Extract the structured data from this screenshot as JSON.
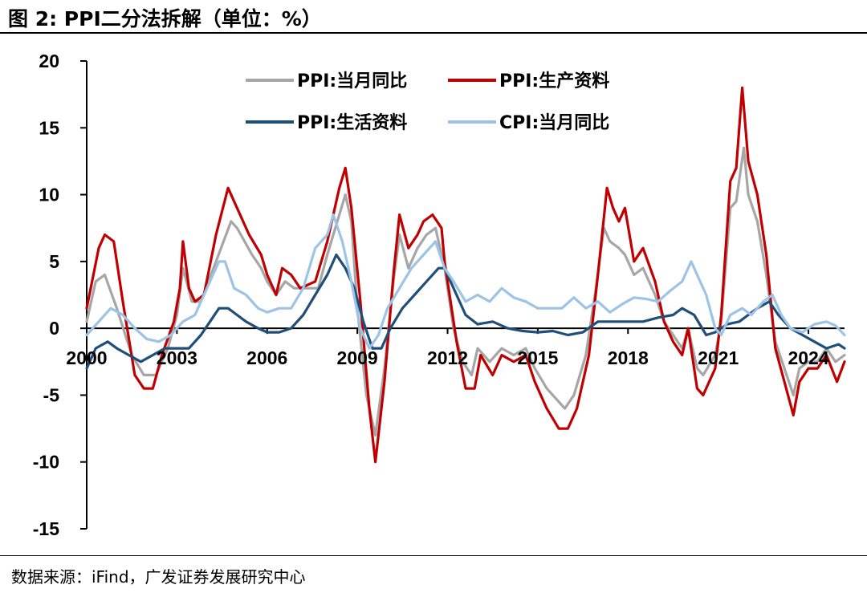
{
  "header": {
    "title": "图 2: PPI二分法拆解（单位：%）"
  },
  "footer": {
    "source": "数据来源：iFind，广发证券发展研究中心"
  },
  "chart_data": {
    "type": "line",
    "title": "PPI二分法拆解（单位：%）",
    "xlabel": "",
    "ylabel": "",
    "ylim": [
      -15,
      20
    ],
    "xlim": [
      2000.0,
      2025.2
    ],
    "yticks": [
      20,
      15,
      10,
      5,
      0,
      -5,
      -10,
      -15
    ],
    "xticks": [
      "2000",
      "2003",
      "2006",
      "2009",
      "2012",
      "2015",
      "2018",
      "2021",
      "2024"
    ],
    "grid": false,
    "legend_position": "top-center",
    "series": [
      {
        "name": "PPI:当月同比",
        "color": "#a6a6a6",
        "points": [
          [
            2000.0,
            0.5
          ],
          [
            2000.3,
            3.5
          ],
          [
            2000.6,
            4.0
          ],
          [
            2001.0,
            1.5
          ],
          [
            2001.5,
            -2.0
          ],
          [
            2001.9,
            -3.5
          ],
          [
            2002.3,
            -3.5
          ],
          [
            2002.7,
            -1.5
          ],
          [
            2003.0,
            1.0
          ],
          [
            2003.2,
            4.5
          ],
          [
            2003.5,
            2.0
          ],
          [
            2003.8,
            2.0
          ],
          [
            2004.3,
            5.0
          ],
          [
            2004.8,
            8.0
          ],
          [
            2005.0,
            7.5
          ],
          [
            2005.5,
            5.5
          ],
          [
            2005.8,
            4.5
          ],
          [
            2006.0,
            3.5
          ],
          [
            2006.3,
            2.5
          ],
          [
            2006.6,
            3.5
          ],
          [
            2006.9,
            3.0
          ],
          [
            2007.2,
            3.0
          ],
          [
            2007.7,
            3.0
          ],
          [
            2008.0,
            5.5
          ],
          [
            2008.4,
            8.5
          ],
          [
            2008.6,
            10.0
          ],
          [
            2008.8,
            8.0
          ],
          [
            2009.0,
            1.5
          ],
          [
            2009.3,
            -5.0
          ],
          [
            2009.6,
            -8.0
          ],
          [
            2009.9,
            -3.0
          ],
          [
            2010.2,
            3.5
          ],
          [
            2010.4,
            7.0
          ],
          [
            2010.7,
            4.5
          ],
          [
            2011.0,
            6.0
          ],
          [
            2011.3,
            7.0
          ],
          [
            2011.6,
            7.5
          ],
          [
            2011.9,
            4.5
          ],
          [
            2012.2,
            0.0
          ],
          [
            2012.5,
            -2.5
          ],
          [
            2012.8,
            -3.5
          ],
          [
            2013.0,
            -1.5
          ],
          [
            2013.4,
            -2.5
          ],
          [
            2013.8,
            -1.5
          ],
          [
            2014.2,
            -2.0
          ],
          [
            2014.6,
            -1.5
          ],
          [
            2014.9,
            -3.0
          ],
          [
            2015.3,
            -4.5
          ],
          [
            2015.7,
            -5.5
          ],
          [
            2015.9,
            -6.0
          ],
          [
            2016.2,
            -5.0
          ],
          [
            2016.6,
            -2.0
          ],
          [
            2016.9,
            2.5
          ],
          [
            2017.2,
            7.5
          ],
          [
            2017.4,
            6.5
          ],
          [
            2017.7,
            6.0
          ],
          [
            2017.9,
            5.5
          ],
          [
            2018.2,
            4.0
          ],
          [
            2018.5,
            4.5
          ],
          [
            2018.9,
            2.5
          ],
          [
            2019.2,
            0.5
          ],
          [
            2019.5,
            -0.5
          ],
          [
            2019.8,
            -1.5
          ],
          [
            2020.0,
            0.0
          ],
          [
            2020.3,
            -3.0
          ],
          [
            2020.5,
            -3.5
          ],
          [
            2020.9,
            -2.0
          ],
          [
            2021.1,
            0.5
          ],
          [
            2021.4,
            9.0
          ],
          [
            2021.6,
            9.5
          ],
          [
            2021.85,
            13.5
          ],
          [
            2022.0,
            10.0
          ],
          [
            2022.3,
            8.0
          ],
          [
            2022.6,
            4.0
          ],
          [
            2022.9,
            -1.0
          ],
          [
            2023.2,
            -3.0
          ],
          [
            2023.5,
            -5.0
          ],
          [
            2023.7,
            -3.0
          ],
          [
            2024.0,
            -2.5
          ],
          [
            2024.3,
            -2.5
          ],
          [
            2024.6,
            -1.5
          ],
          [
            2024.9,
            -2.5
          ],
          [
            2025.2,
            -2.0
          ]
        ]
      },
      {
        "name": "PPI:生产资料",
        "color": "#c00000",
        "points": [
          [
            2000.0,
            1.5
          ],
          [
            2000.4,
            6.0
          ],
          [
            2000.6,
            7.0
          ],
          [
            2000.9,
            6.5
          ],
          [
            2001.2,
            2.0
          ],
          [
            2001.6,
            -3.5
          ],
          [
            2001.9,
            -4.5
          ],
          [
            2002.2,
            -4.5
          ],
          [
            2002.5,
            -2.0
          ],
          [
            2002.9,
            0.5
          ],
          [
            2003.1,
            3.0
          ],
          [
            2003.2,
            6.5
          ],
          [
            2003.4,
            3.0
          ],
          [
            2003.6,
            2.0
          ],
          [
            2003.9,
            2.5
          ],
          [
            2004.3,
            7.0
          ],
          [
            2004.7,
            10.5
          ],
          [
            2005.0,
            9.0
          ],
          [
            2005.4,
            7.0
          ],
          [
            2005.8,
            5.5
          ],
          [
            2006.0,
            4.0
          ],
          [
            2006.3,
            2.5
          ],
          [
            2006.5,
            4.5
          ],
          [
            2006.8,
            4.0
          ],
          [
            2007.1,
            3.0
          ],
          [
            2007.6,
            3.5
          ],
          [
            2008.0,
            6.5
          ],
          [
            2008.4,
            10.5
          ],
          [
            2008.6,
            12.0
          ],
          [
            2008.8,
            9.0
          ],
          [
            2009.1,
            2.0
          ],
          [
            2009.4,
            -6.0
          ],
          [
            2009.6,
            -10.0
          ],
          [
            2009.9,
            -4.0
          ],
          [
            2010.2,
            4.0
          ],
          [
            2010.4,
            8.5
          ],
          [
            2010.7,
            6.0
          ],
          [
            2011.0,
            7.0
          ],
          [
            2011.2,
            8.0
          ],
          [
            2011.5,
            8.5
          ],
          [
            2011.8,
            7.5
          ],
          [
            2011.9,
            5.0
          ],
          [
            2012.3,
            -1.0
          ],
          [
            2012.6,
            -4.5
          ],
          [
            2012.9,
            -4.5
          ],
          [
            2013.1,
            -2.0
          ],
          [
            2013.5,
            -3.5
          ],
          [
            2013.8,
            -2.0
          ],
          [
            2014.2,
            -2.5
          ],
          [
            2014.6,
            -2.0
          ],
          [
            2014.9,
            -4.0
          ],
          [
            2015.3,
            -6.0
          ],
          [
            2015.7,
            -7.5
          ],
          [
            2016.0,
            -7.5
          ],
          [
            2016.3,
            -6.0
          ],
          [
            2016.7,
            -2.0
          ],
          [
            2017.0,
            4.0
          ],
          [
            2017.3,
            10.5
          ],
          [
            2017.5,
            9.0
          ],
          [
            2017.7,
            8.0
          ],
          [
            2017.9,
            9.0
          ],
          [
            2018.2,
            5.0
          ],
          [
            2018.5,
            6.0
          ],
          [
            2018.9,
            3.5
          ],
          [
            2019.2,
            0.5
          ],
          [
            2019.5,
            -1.0
          ],
          [
            2019.8,
            -2.0
          ],
          [
            2020.0,
            0.0
          ],
          [
            2020.3,
            -4.5
          ],
          [
            2020.5,
            -5.0
          ],
          [
            2020.9,
            -3.0
          ],
          [
            2021.1,
            1.0
          ],
          [
            2021.4,
            11.0
          ],
          [
            2021.6,
            12.0
          ],
          [
            2021.8,
            18.0
          ],
          [
            2022.0,
            12.5
          ],
          [
            2022.3,
            10.0
          ],
          [
            2022.6,
            5.5
          ],
          [
            2022.9,
            -1.5
          ],
          [
            2023.2,
            -4.0
          ],
          [
            2023.5,
            -6.5
          ],
          [
            2023.7,
            -4.0
          ],
          [
            2024.0,
            -3.0
          ],
          [
            2024.3,
            -3.0
          ],
          [
            2024.6,
            -2.0
          ],
          [
            2024.95,
            -4.0
          ],
          [
            2025.2,
            -2.5
          ]
        ]
      },
      {
        "name": "PPI:生活资料",
        "color": "#1f4e79",
        "points": [
          [
            2000.0,
            -3.0
          ],
          [
            2000.3,
            -1.5
          ],
          [
            2000.7,
            -1.0
          ],
          [
            2001.0,
            -1.5
          ],
          [
            2001.4,
            -2.0
          ],
          [
            2001.8,
            -2.5
          ],
          [
            2002.2,
            -2.0
          ],
          [
            2002.6,
            -1.5
          ],
          [
            2003.0,
            -1.5
          ],
          [
            2003.4,
            -1.5
          ],
          [
            2003.8,
            -0.5
          ],
          [
            2004.1,
            0.5
          ],
          [
            2004.4,
            1.5
          ],
          [
            2004.7,
            1.5
          ],
          [
            2005.0,
            1.0
          ],
          [
            2005.3,
            0.5
          ],
          [
            2005.7,
            0.0
          ],
          [
            2006.0,
            -0.3
          ],
          [
            2006.4,
            -0.3
          ],
          [
            2006.8,
            0.0
          ],
          [
            2007.2,
            1.0
          ],
          [
            2007.6,
            2.5
          ],
          [
            2008.0,
            4.0
          ],
          [
            2008.3,
            5.5
          ],
          [
            2008.6,
            4.5
          ],
          [
            2008.9,
            3.0
          ],
          [
            2009.2,
            0.5
          ],
          [
            2009.5,
            -1.5
          ],
          [
            2009.8,
            -1.5
          ],
          [
            2010.1,
            0.0
          ],
          [
            2010.5,
            1.5
          ],
          [
            2010.9,
            2.5
          ],
          [
            2011.3,
            3.5
          ],
          [
            2011.7,
            4.5
          ],
          [
            2011.9,
            4.5
          ],
          [
            2012.2,
            3.0
          ],
          [
            2012.6,
            1.0
          ],
          [
            2013.0,
            0.3
          ],
          [
            2013.5,
            0.5
          ],
          [
            2014.0,
            0.0
          ],
          [
            2014.5,
            -0.2
          ],
          [
            2015.0,
            -0.3
          ],
          [
            2015.5,
            -0.2
          ],
          [
            2016.0,
            -0.5
          ],
          [
            2016.5,
            -0.3
          ],
          [
            2017.0,
            0.5
          ],
          [
            2017.5,
            0.5
          ],
          [
            2018.0,
            0.5
          ],
          [
            2018.5,
            0.5
          ],
          [
            2019.0,
            0.8
          ],
          [
            2019.5,
            1.0
          ],
          [
            2019.8,
            1.5
          ],
          [
            2020.2,
            1.0
          ],
          [
            2020.6,
            -0.5
          ],
          [
            2020.9,
            -0.3
          ],
          [
            2021.3,
            0.3
          ],
          [
            2021.7,
            0.5
          ],
          [
            2022.0,
            1.0
          ],
          [
            2022.3,
            1.5
          ],
          [
            2022.7,
            2.0
          ],
          [
            2023.0,
            1.0
          ],
          [
            2023.4,
            0.0
          ],
          [
            2023.8,
            -0.5
          ],
          [
            2024.2,
            -1.0
          ],
          [
            2024.6,
            -1.5
          ],
          [
            2025.0,
            -1.2
          ],
          [
            2025.2,
            -1.5
          ]
        ]
      },
      {
        "name": "CPI:当月同比",
        "color": "#9dc3e6",
        "points": [
          [
            2000.0,
            -0.5
          ],
          [
            2000.4,
            0.5
          ],
          [
            2000.8,
            1.5
          ],
          [
            2001.2,
            1.0
          ],
          [
            2001.6,
            0.0
          ],
          [
            2002.0,
            -0.8
          ],
          [
            2002.4,
            -1.0
          ],
          [
            2002.8,
            -0.5
          ],
          [
            2003.2,
            0.5
          ],
          [
            2003.6,
            1.0
          ],
          [
            2004.0,
            3.0
          ],
          [
            2004.4,
            5.0
          ],
          [
            2004.6,
            5.0
          ],
          [
            2004.9,
            3.0
          ],
          [
            2005.3,
            2.5
          ],
          [
            2005.7,
            1.5
          ],
          [
            2006.0,
            1.2
          ],
          [
            2006.4,
            1.5
          ],
          [
            2006.8,
            1.5
          ],
          [
            2007.2,
            3.0
          ],
          [
            2007.6,
            6.0
          ],
          [
            2008.0,
            7.0
          ],
          [
            2008.2,
            8.5
          ],
          [
            2008.5,
            6.5
          ],
          [
            2008.8,
            3.5
          ],
          [
            2009.1,
            0.0
          ],
          [
            2009.4,
            -1.5
          ],
          [
            2009.7,
            -0.5
          ],
          [
            2010.0,
            1.5
          ],
          [
            2010.4,
            3.0
          ],
          [
            2010.8,
            4.5
          ],
          [
            2011.2,
            5.5
          ],
          [
            2011.6,
            6.5
          ],
          [
            2011.9,
            4.5
          ],
          [
            2012.2,
            3.5
          ],
          [
            2012.6,
            2.0
          ],
          [
            2013.0,
            2.5
          ],
          [
            2013.4,
            2.0
          ],
          [
            2013.8,
            3.0
          ],
          [
            2014.2,
            2.3
          ],
          [
            2014.6,
            2.0
          ],
          [
            2015.0,
            1.5
          ],
          [
            2015.4,
            1.5
          ],
          [
            2015.8,
            1.5
          ],
          [
            2016.2,
            2.3
          ],
          [
            2016.6,
            1.5
          ],
          [
            2017.0,
            2.0
          ],
          [
            2017.4,
            1.2
          ],
          [
            2017.8,
            1.8
          ],
          [
            2018.2,
            2.3
          ],
          [
            2018.6,
            2.2
          ],
          [
            2019.0,
            2.0
          ],
          [
            2019.4,
            2.8
          ],
          [
            2019.8,
            3.5
          ],
          [
            2020.1,
            5.0
          ],
          [
            2020.3,
            4.0
          ],
          [
            2020.6,
            2.5
          ],
          [
            2020.9,
            0.0
          ],
          [
            2021.1,
            -0.5
          ],
          [
            2021.4,
            1.0
          ],
          [
            2021.8,
            1.5
          ],
          [
            2022.1,
            1.0
          ],
          [
            2022.5,
            2.0
          ],
          [
            2022.8,
            2.5
          ],
          [
            2023.1,
            1.0
          ],
          [
            2023.4,
            0.0
          ],
          [
            2023.8,
            -0.3
          ],
          [
            2024.2,
            0.3
          ],
          [
            2024.6,
            0.5
          ],
          [
            2024.9,
            0.2
          ],
          [
            2025.2,
            -0.5
          ]
        ]
      }
    ]
  }
}
